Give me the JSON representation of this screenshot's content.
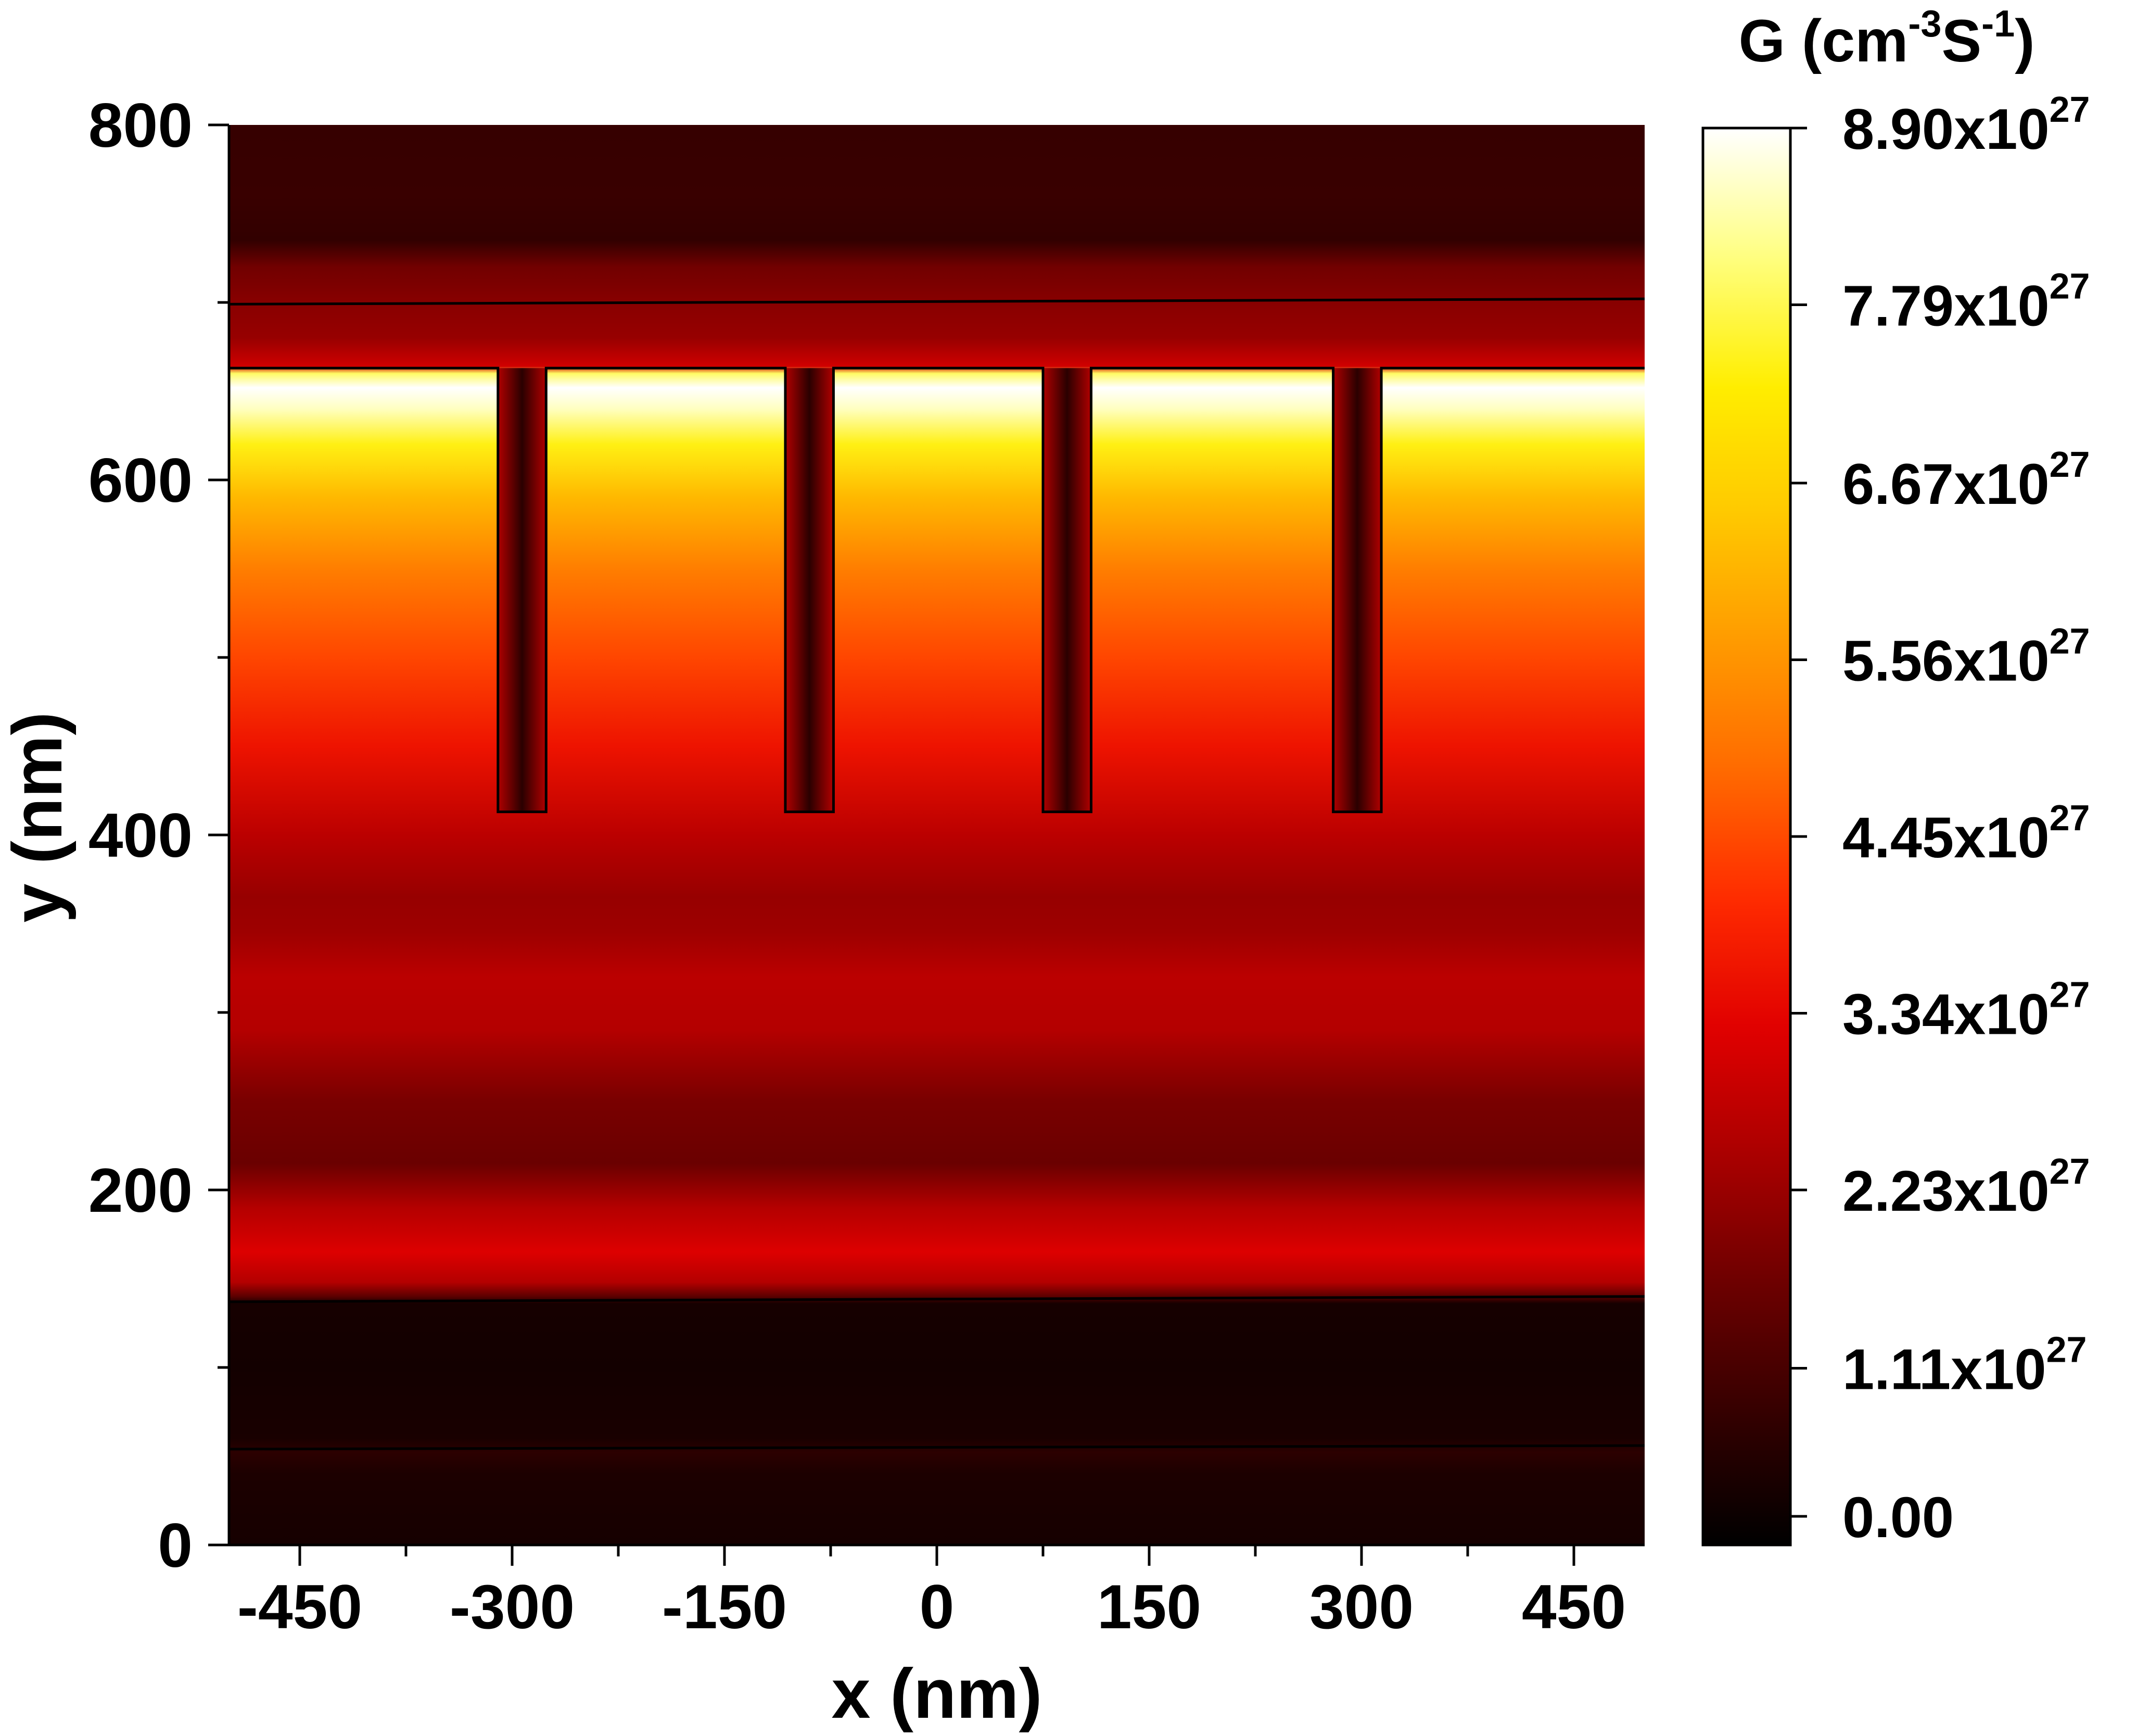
{
  "chart_data": {
    "type": "heatmap",
    "xlabel": "x (nm)",
    "ylabel": "y (nm)",
    "colorbar_label": {
      "base": "G (cm",
      "sup1": "-3",
      "mid": "S",
      "sup2": "-1",
      "end": ")"
    },
    "xlim": [
      -500,
      500
    ],
    "ylim": [
      0,
      800
    ],
    "x_ticks": [
      -450,
      -300,
      -150,
      0,
      150,
      300,
      450
    ],
    "x_tick_labels": [
      "-450",
      "-300",
      "-150",
      "0",
      "150",
      "300",
      "450"
    ],
    "x_minor_ticks": [
      -375,
      -225,
      -75,
      75,
      225,
      375
    ],
    "y_ticks": [
      0,
      200,
      400,
      600,
      800
    ],
    "y_tick_labels": [
      "0",
      "200",
      "400",
      "600",
      "800"
    ],
    "y_minor_ticks": [
      100,
      300,
      500,
      700
    ],
    "colorbar": {
      "min": 0,
      "max": 8.9e+27,
      "ticks": [
        0,
        1.11e+27,
        2.23e+27,
        3.34e+27,
        4.45e+27,
        5.56e+27,
        6.67e+27,
        7.79e+27,
        8.9e+27
      ],
      "tick_labels": [
        {
          "mantissa": "0.00",
          "base": "",
          "exp": ""
        },
        {
          "mantissa": "1.11x10",
          "base": "",
          "exp": "27"
        },
        {
          "mantissa": "2.23x10",
          "base": "",
          "exp": "27"
        },
        {
          "mantissa": "3.34x10",
          "base": "",
          "exp": "27"
        },
        {
          "mantissa": "4.45x10",
          "base": "",
          "exp": "27"
        },
        {
          "mantissa": "5.56x10",
          "base": "",
          "exp": "27"
        },
        {
          "mantissa": "6.67x10",
          "base": "",
          "exp": "27"
        },
        {
          "mantissa": "7.79x10",
          "base": "",
          "exp": "27"
        },
        {
          "mantissa": "8.90x10",
          "base": "",
          "exp": "27"
        }
      ],
      "colormap": [
        "#000000",
        "#330000",
        "#6b0000",
        "#a80000",
        "#e00000",
        "#ff2a00",
        "#ff6a00",
        "#ff9a00",
        "#ffc800",
        "#ffee00",
        "#ffff80",
        "#ffffff"
      ]
    },
    "vertical_profile": [
      {
        "y": 0,
        "g": 3.5e+26
      },
      {
        "y": 40,
        "g": 4.5e+26
      },
      {
        "y": 52,
        "g": 7e+26
      },
      {
        "y": 60,
        "g": 4e+26
      },
      {
        "y": 100,
        "g": 3e+26
      },
      {
        "y": 136,
        "g": 3.5e+26
      },
      {
        "y": 140,
        "g": 1.4e+27
      },
      {
        "y": 148,
        "g": 2.6e+27
      },
      {
        "y": 165,
        "g": 3.2e+27
      },
      {
        "y": 190,
        "g": 2.6e+27
      },
      {
        "y": 215,
        "g": 1.6e+27
      },
      {
        "y": 250,
        "g": 1.8e+27
      },
      {
        "y": 290,
        "g": 2.6e+27
      },
      {
        "y": 320,
        "g": 2.7e+27
      },
      {
        "y": 345,
        "g": 2.3e+27
      },
      {
        "y": 365,
        "g": 2.2e+27
      },
      {
        "y": 400,
        "g": 2.7e+27
      },
      {
        "y": 450,
        "g": 3.6e+27
      },
      {
        "y": 500,
        "g": 4.4e+27
      },
      {
        "y": 550,
        "g": 5.2e+27
      },
      {
        "y": 590,
        "g": 6.2e+27
      },
      {
        "y": 620,
        "g": 7.4e+27
      },
      {
        "y": 640,
        "g": 8.5e+27
      },
      {
        "y": 652,
        "g": 8.9e+27
      },
      {
        "y": 660,
        "g": 7.9e+27
      },
      {
        "y": 664,
        "g": 3e+27
      },
      {
        "y": 680,
        "g": 2.2e+27
      },
      {
        "y": 700,
        "g": 2e+27
      },
      {
        "y": 720,
        "g": 1.7e+27
      },
      {
        "y": 735,
        "g": 8e+26
      },
      {
        "y": 760,
        "g": 9e+26
      },
      {
        "y": 800,
        "g": 8.5e+26
      }
    ],
    "boundary_lines": [
      {
        "x": [
          -500,
          500
        ],
        "y": [
          699,
          702
        ]
      },
      {
        "x": [
          -500,
          500
        ],
        "y": [
          137,
          140
        ]
      },
      {
        "x": [
          -500,
          500
        ],
        "y": [
          54,
          56
        ]
      }
    ],
    "grating_outline": {
      "top_y": 663,
      "bottom_y": 413,
      "trenches": [
        {
          "x0": -310,
          "x1": -276
        },
        {
          "x0": -107,
          "x1": -73
        },
        {
          "x0": 75,
          "x1": 109
        },
        {
          "x0": 280,
          "x1": 314
        }
      ]
    }
  }
}
